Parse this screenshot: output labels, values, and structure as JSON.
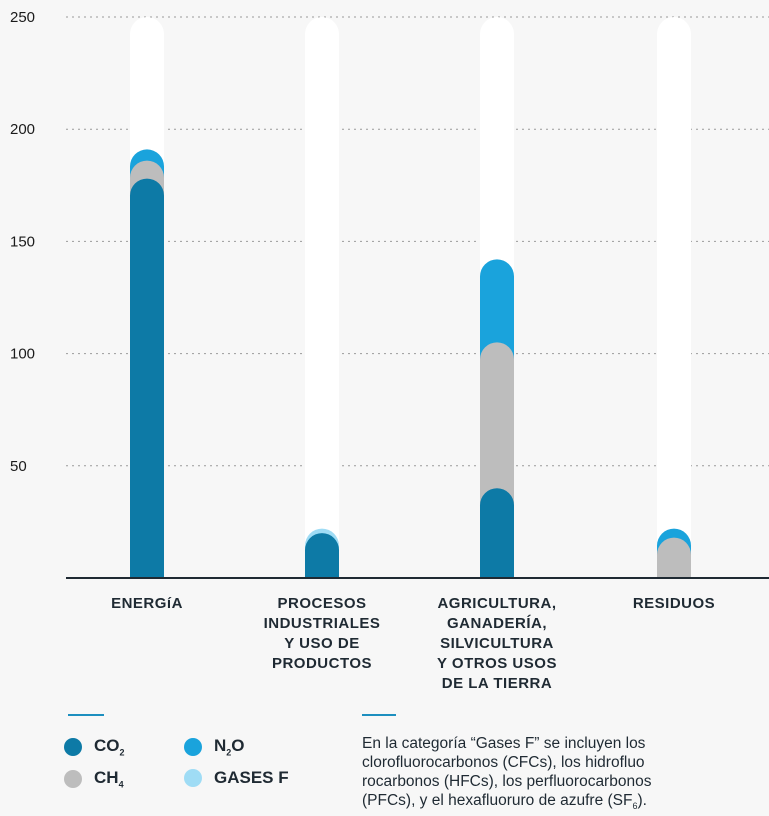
{
  "chart_data": {
    "type": "bar",
    "stacked": true,
    "categories": [
      "ENERGÍA",
      "PROCESOS INDUSTRIALES Y USO DE PRODUCTOS",
      "AGRICULTURA, GANADERÍA, SILVICULTURA Y OTROS USOS DE LA TIERRA",
      "RESIDUOS"
    ],
    "category_lines": [
      [
        "ENERGíA"
      ],
      [
        "PROCESOS",
        "INDUSTRIALES",
        "Y USO DE",
        "PRODUCTOS"
      ],
      [
        "AGRICULTURA,",
        "GANADERÍA,",
        "SILVICULTURA",
        "Y OTROS USOS",
        "DE LA TIERRA"
      ],
      [
        "RESIDUOS"
      ]
    ],
    "series": [
      {
        "name": "CO2",
        "color": "#0d7aa6",
        "values": [
          178,
          20,
          40,
          0
        ]
      },
      {
        "name": "CH4",
        "color": "#bdbdbd",
        "values": [
          8,
          0,
          65,
          18
        ]
      },
      {
        "name": "N2O",
        "color": "#1aa3dc",
        "values": [
          5,
          0,
          37,
          4
        ]
      },
      {
        "name": "GASES F",
        "color": "#9fdcf5",
        "values": [
          0,
          2,
          0,
          0
        ]
      }
    ],
    "yticks": [
      50,
      100,
      150,
      200,
      250
    ],
    "ylim": [
      0,
      250
    ],
    "grid": true,
    "track_color": "#ffffff",
    "xlabel": "",
    "ylabel": ""
  },
  "legend": {
    "items": [
      {
        "main": "CO",
        "sub": "2",
        "rest": "",
        "color": "#0d7aa6"
      },
      {
        "main": "N",
        "sub": "2",
        "rest": "O",
        "color": "#1aa3dc"
      },
      {
        "main": "CH",
        "sub": "4",
        "rest": "",
        "color": "#bdbdbd"
      },
      {
        "main": "GASES F",
        "sub": "",
        "rest": "",
        "color": "#9fdcf5"
      }
    ]
  },
  "note": {
    "line1": "En la categoría “Gases F” se incluyen los",
    "line2": "clorofluorocarbonos (CFCs), los hidrofluo",
    "line3": "rocarbonos (HFCs), los perfluorocarbonos",
    "line4_main": "(PFCs), y el hexafluoruro de azufre (SF",
    "line4_sub": "6",
    "line4_end": ")."
  },
  "accent": "#1d8fbf"
}
